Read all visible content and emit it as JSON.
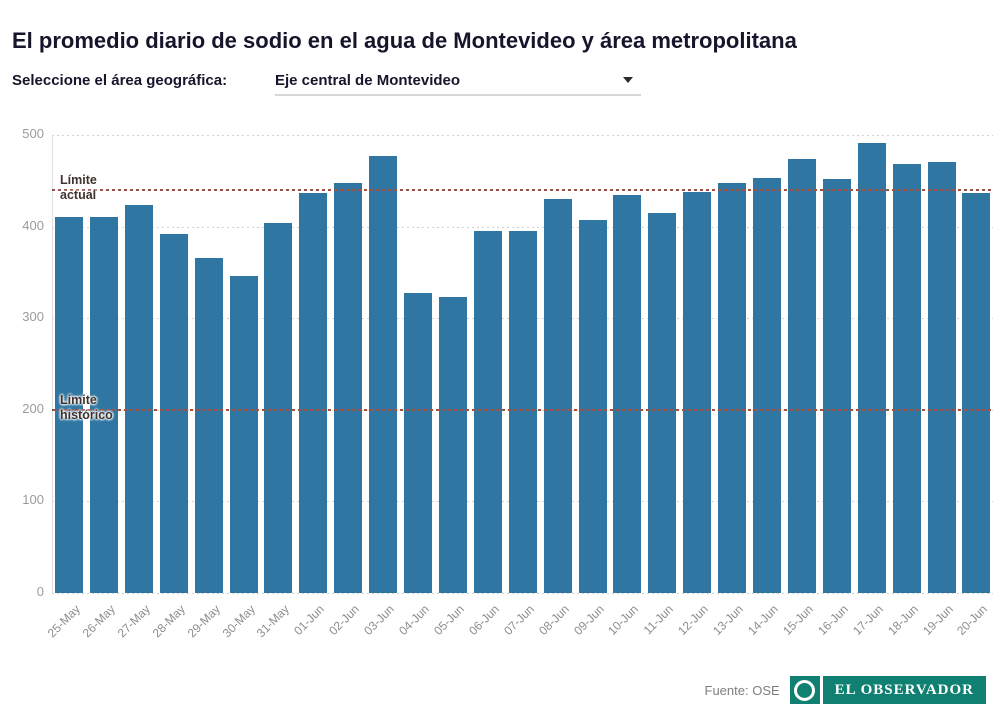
{
  "header": {
    "title": "El promedio diario de sodio en el agua de Montevideo y área metropolitana"
  },
  "controls": {
    "label": "Seleccione el área geográfica:",
    "selected_option": "Eje central de Montevideo",
    "dropdown_icon": "chevron-down"
  },
  "chart_data": {
    "type": "bar",
    "title": "El promedio diario de sodio en el agua de Montevideo y área metropolitana",
    "categories": [
      "25-May",
      "26-May",
      "27-May",
      "28-May",
      "29-May",
      "30-May",
      "31-May",
      "01-Jun",
      "02-Jun",
      "03-Jun",
      "04-Jun",
      "05-Jun",
      "06-Jun",
      "07-Jun",
      "08-Jun",
      "09-Jun",
      "10-Jun",
      "11-Jun",
      "12-Jun",
      "13-Jun",
      "14-Jun",
      "15-Jun",
      "16-Jun",
      "17-Jun",
      "18-Jun",
      "19-Jun",
      "20-Jun"
    ],
    "values": [
      410,
      410,
      424,
      392,
      366,
      346,
      404,
      437,
      448,
      477,
      328,
      323,
      395,
      395,
      430,
      407,
      434,
      415,
      438,
      448,
      453,
      474,
      452,
      491,
      468,
      471,
      437
    ],
    "ylim": [
      0,
      500
    ],
    "yticks": [
      0,
      100,
      200,
      300,
      400,
      500
    ],
    "grid": "horizontal-dotted",
    "legend": "none",
    "bar_color": "#2f76a2",
    "reference_lines": [
      {
        "value": 440,
        "label_lines": [
          "Límite",
          "actual"
        ],
        "color": "#9a524b"
      },
      {
        "value": 200,
        "label_lines": [
          "Límite",
          "histórico"
        ],
        "color": "#9a524b"
      }
    ]
  },
  "footer": {
    "source": "Fuente: OSE",
    "brand": "EL OBSERVADOR",
    "brand_color": "#0f8071",
    "brand_icon": "circle-o-logo"
  }
}
